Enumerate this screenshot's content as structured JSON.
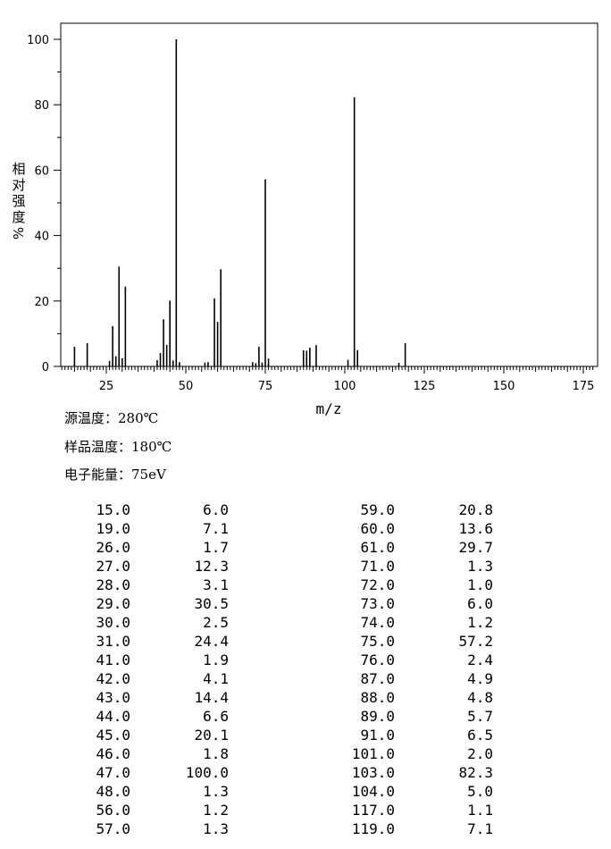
{
  "chart_data": {
    "type": "bar",
    "xlabel": "m/z",
    "ylabel": "相对强度%",
    "xlim": [
      10,
      178
    ],
    "ylim": [
      0,
      105
    ],
    "x_ticks": [
      25,
      50,
      75,
      100,
      125,
      150,
      175
    ],
    "y_ticks": [
      0,
      20,
      40,
      60,
      80,
      100
    ],
    "grid": false,
    "series": [
      {
        "x": [
          15,
          19,
          26,
          27,
          28,
          29,
          30,
          31,
          41,
          42,
          43,
          44,
          45,
          46,
          47,
          48,
          56,
          57,
          59,
          60,
          61,
          71,
          72,
          73,
          74,
          75,
          76,
          87,
          88,
          89,
          91,
          101,
          103,
          104,
          117,
          119
        ],
        "values": [
          6.0,
          7.1,
          1.7,
          12.3,
          3.1,
          30.5,
          2.5,
          24.4,
          1.9,
          4.1,
          14.4,
          6.6,
          20.1,
          1.8,
          100.0,
          1.3,
          1.2,
          1.3,
          20.8,
          13.6,
          29.7,
          1.3,
          1.0,
          6.0,
          1.2,
          57.2,
          2.4,
          4.9,
          4.8,
          5.7,
          6.5,
          2.0,
          82.3,
          5.0,
          1.1,
          7.1
        ]
      }
    ]
  },
  "conditions": {
    "source_temp": "源温度：280℃",
    "sample_temp": "样品温度：180℃",
    "electron_energy": "电子能量：75eV"
  },
  "peak_table": {
    "left": [
      [
        "15.0",
        "6.0"
      ],
      [
        "19.0",
        "7.1"
      ],
      [
        "26.0",
        "1.7"
      ],
      [
        "27.0",
        "12.3"
      ],
      [
        "28.0",
        "3.1"
      ],
      [
        "29.0",
        "30.5"
      ],
      [
        "30.0",
        "2.5"
      ],
      [
        "31.0",
        "24.4"
      ],
      [
        "41.0",
        "1.9"
      ],
      [
        "42.0",
        "4.1"
      ],
      [
        "43.0",
        "14.4"
      ],
      [
        "44.0",
        "6.6"
      ],
      [
        "45.0",
        "20.1"
      ],
      [
        "46.0",
        "1.8"
      ],
      [
        "47.0",
        "100.0"
      ],
      [
        "48.0",
        "1.3"
      ],
      [
        "56.0",
        "1.2"
      ],
      [
        "57.0",
        "1.3"
      ]
    ],
    "right": [
      [
        "59.0",
        "20.8"
      ],
      [
        "60.0",
        "13.6"
      ],
      [
        "61.0",
        "29.7"
      ],
      [
        "71.0",
        "1.3"
      ],
      [
        "72.0",
        "1.0"
      ],
      [
        "73.0",
        "6.0"
      ],
      [
        "74.0",
        "1.2"
      ],
      [
        "75.0",
        "57.2"
      ],
      [
        "76.0",
        "2.4"
      ],
      [
        "87.0",
        "4.9"
      ],
      [
        "88.0",
        "4.8"
      ],
      [
        "89.0",
        "5.7"
      ],
      [
        "91.0",
        "6.5"
      ],
      [
        "101.0",
        "2.0"
      ],
      [
        "103.0",
        "82.3"
      ],
      [
        "104.0",
        "5.0"
      ],
      [
        "117.0",
        "1.1"
      ],
      [
        "119.0",
        "7.1"
      ]
    ]
  }
}
